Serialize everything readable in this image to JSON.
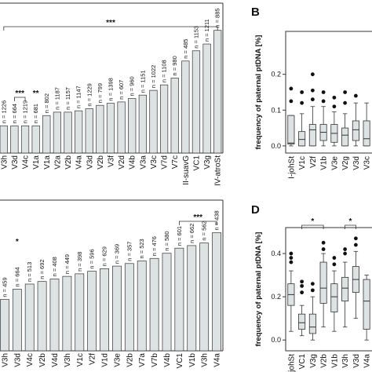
{
  "chart_data": [
    {
      "panel": "A (upper left, cropped)",
      "type": "bar",
      "categories": [
        "V3h",
        "V3d",
        "V4c",
        "V1a",
        "V1a",
        "V2a",
        "V2b",
        "V4a",
        "V3d",
        "V2b",
        "V3f",
        "V2d",
        "V4b",
        "V3a",
        "V3c",
        "V7d",
        "V7c",
        "II-suavG",
        "VC1",
        "V3g",
        "IV-atroSt"
      ],
      "values": [
        0.04,
        0.04,
        0.04,
        0.04,
        0.055,
        0.06,
        0.06,
        0.062,
        0.065,
        0.07,
        0.073,
        0.075,
        0.08,
        0.085,
        0.092,
        0.1,
        0.11,
        0.135,
        0.15,
        0.16,
        0.18
      ],
      "n_labels": [
        "n = 1226",
        "n = 664",
        "n = 1219",
        "n = 681",
        "n = 802",
        "n = 1187",
        "n = 1157",
        "n = 1147",
        "n = 1229",
        "n = 799",
        "n = 1398",
        "n = 607",
        "n = 960",
        "n = 1151",
        "n = 1022",
        "n = 1108",
        "n = 980",
        "n = 485",
        "n = 1153",
        "n = 1211",
        "n = 885"
      ],
      "significance": [
        {
          "label": "***",
          "from": 1,
          "to": 2
        },
        {
          "label": "**",
          "from": 3,
          "to": 3
        },
        {
          "label": "***",
          "from": 0,
          "to": 20
        }
      ]
    },
    {
      "panel": "C (lower left, cropped)",
      "type": "bar",
      "categories": [
        "V3h",
        "V3d",
        "V4c",
        "V2b",
        "V4d",
        "V3h",
        "V1c",
        "V2f",
        "V1d",
        "V3e",
        "V2b",
        "V7a",
        "V7b",
        "V4b",
        "VC1",
        "V1b",
        "V3h",
        "V4a"
      ],
      "values": [
        0.1,
        0.12,
        0.13,
        0.135,
        0.14,
        0.145,
        0.15,
        0.155,
        0.16,
        0.165,
        0.17,
        0.175,
        0.18,
        0.19,
        0.2,
        0.205,
        0.21,
        0.23
      ],
      "n_labels": [
        "n = 459",
        "n = 664",
        "n = 513",
        "n = 692",
        "n = 408",
        "n = 449",
        "n = 398",
        "n = 596",
        "n = 629",
        "n = 369",
        "n = 357",
        "n = 523",
        "n = 476",
        "n = 580",
        "n = 601",
        "n = 662",
        "n = 562",
        "n = 438"
      ],
      "significance": [
        {
          "label": "*",
          "from": 1,
          "to": 1
        },
        {
          "label": "***",
          "from": 14,
          "to": 17
        }
      ]
    },
    {
      "panel": "B",
      "panel_label": "B",
      "type": "box",
      "ylabel": "frequency of paternal ptDNA [%]",
      "ylim": [
        -0.02,
        0.32
      ],
      "yticks": [
        0.0,
        0.1,
        0.2
      ],
      "categories": [
        "I-johSt",
        "V1c",
        "V2f",
        "V1b",
        "V3e",
        "V2g",
        "V3d",
        "V3c"
      ],
      "boxes": [
        {
          "q1": 0.005,
          "median": 0.008,
          "q3": 0.085,
          "wlo": 0.0,
          "whi": 0.085,
          "outliers": [
            0.125,
            0.16
          ]
        },
        {
          "q1": 0.0,
          "median": 0.018,
          "q3": 0.04,
          "wlo": 0.0,
          "whi": 0.09,
          "outliers": [
            0.12,
            0.15
          ]
        },
        {
          "q1": 0.0,
          "median": 0.045,
          "q3": 0.06,
          "wlo": 0.0,
          "whi": 0.11,
          "outliers": [
            0.13,
            0.155,
            0.2
          ]
        },
        {
          "q1": 0.015,
          "median": 0.038,
          "q3": 0.06,
          "wlo": 0.0,
          "whi": 0.11,
          "outliers": [
            0.125,
            0.15
          ]
        },
        {
          "q1": 0.01,
          "median": 0.035,
          "q3": 0.06,
          "wlo": 0.0,
          "whi": 0.095,
          "outliers": [
            0.11,
            0.135
          ]
        },
        {
          "q1": 0.0,
          "median": 0.03,
          "q3": 0.05,
          "wlo": 0.0,
          "whi": 0.09,
          "outliers": [
            0.12,
            0.15
          ]
        },
        {
          "q1": 0.015,
          "median": 0.045,
          "q3": 0.07,
          "wlo": 0.0,
          "whi": 0.12,
          "outliers": [
            0.14
          ]
        },
        {
          "q1": 0.0,
          "median": 0.02,
          "q3": 0.07,
          "wlo": 0.0,
          "whi": 0.12,
          "outliers": []
        }
      ]
    },
    {
      "panel": "D",
      "panel_label": "D",
      "type": "box",
      "ylabel": "frequency of paternal ptDNA [%]",
      "ylim": [
        -0.05,
        0.52
      ],
      "yticks": [
        0.0,
        0.2,
        0.4
      ],
      "categories": [
        "I-johSt",
        "VC1",
        "V3g",
        "V2b",
        "V1b",
        "V3h",
        "V3d",
        "V4a"
      ],
      "boxes": [
        {
          "q1": 0.16,
          "median": 0.21,
          "q3": 0.26,
          "wlo": 0.04,
          "whi": 0.32,
          "outliers": [
            0.36,
            0.38,
            0.4
          ]
        },
        {
          "q1": 0.05,
          "median": 0.08,
          "q3": 0.12,
          "wlo": 0.02,
          "whi": 0.16,
          "outliers": [
            0.22,
            0.25,
            0.27
          ]
        },
        {
          "q1": 0.03,
          "median": 0.06,
          "q3": 0.12,
          "wlo": 0.0,
          "whi": 0.2,
          "outliers": [
            0.23,
            0.26
          ]
        },
        {
          "q1": 0.17,
          "median": 0.24,
          "q3": 0.36,
          "wlo": 0.06,
          "whi": 0.4,
          "outliers": [
            0.42,
            0.45
          ]
        },
        {
          "q1": 0.13,
          "median": 0.2,
          "q3": 0.26,
          "wlo": 0.04,
          "whi": 0.32,
          "outliers": [
            0.35,
            0.38
          ]
        },
        {
          "q1": 0.18,
          "median": 0.24,
          "q3": 0.29,
          "wlo": 0.06,
          "whi": 0.36,
          "outliers": [
            0.4,
            0.42
          ]
        },
        {
          "q1": 0.22,
          "median": 0.28,
          "q3": 0.34,
          "wlo": 0.1,
          "whi": 0.41,
          "outliers": [
            0.44,
            0.47
          ]
        },
        {
          "q1": 0.05,
          "median": 0.18,
          "q3": 0.28,
          "wlo": 0.0,
          "whi": 0.3,
          "outliers": []
        }
      ],
      "significance": [
        {
          "label": "*",
          "from": 1,
          "to": 3
        },
        {
          "label": "*",
          "from": 5,
          "to": 6
        }
      ]
    }
  ]
}
